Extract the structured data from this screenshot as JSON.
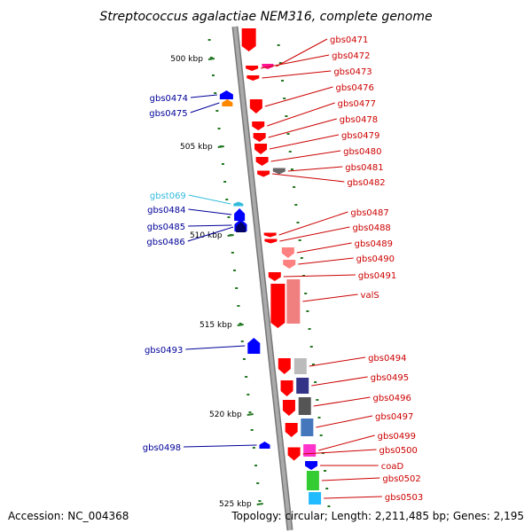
{
  "title": "Streptococcus agalactiae NEM316, complete genome",
  "footer": {
    "accession": "Accession: NC_004368",
    "summary": "Topology: circular; Length: 2,211,485 bp; Genes: 2,195"
  },
  "colors": {
    "forward_label": "#cc0000",
    "reverse_label": "#000099",
    "rna_label": "#33bbdd",
    "backbone": "#888888",
    "tick_mark": "#227722"
  },
  "scale_ticks": [
    {
      "kbp": 500,
      "label": "500 kbp"
    },
    {
      "kbp": 505,
      "label": "505 kbp"
    },
    {
      "kbp": 510,
      "label": "510 kbp"
    },
    {
      "kbp": 515,
      "label": "515 kbp"
    },
    {
      "kbp": 520,
      "label": "520 kbp"
    },
    {
      "kbp": 525,
      "label": "525 kbp"
    }
  ],
  "forward_genes": [
    {
      "name": "gbs0471",
      "color": "#ff1493"
    },
    {
      "name": "gbs0472",
      "color": "#ff0000"
    },
    {
      "name": "gbs0473",
      "color": "#ff0000"
    },
    {
      "name": "gbs0476",
      "color": "#ff0000"
    },
    {
      "name": "gbs0477",
      "color": "#ff0000"
    },
    {
      "name": "gbs0478",
      "color": "#ff0000"
    },
    {
      "name": "gbs0479",
      "color": "#ff0000"
    },
    {
      "name": "gbs0480",
      "color": "#ff0000"
    },
    {
      "name": "gbs0481",
      "color": "#666666"
    },
    {
      "name": "gbs0482",
      "color": "#ff0000"
    },
    {
      "name": "gbs0487",
      "color": "#ff0000"
    },
    {
      "name": "gbs0488",
      "color": "#ff0000"
    },
    {
      "name": "gbs0489",
      "color": "#ff8080"
    },
    {
      "name": "gbs0490",
      "color": "#ff8080"
    },
    {
      "name": "gbs0491",
      "color": "#ff0000"
    },
    {
      "name": "valS",
      "color": "#f08080"
    },
    {
      "name": "gbs0494",
      "color": "#bbbbbb"
    },
    {
      "name": "gbs0495",
      "color": "#333388"
    },
    {
      "name": "gbs0496",
      "color": "#555555"
    },
    {
      "name": "gbs0497",
      "color": "#4477bb"
    },
    {
      "name": "gbs0499",
      "color": "#ff33cc"
    },
    {
      "name": "gbs0500",
      "color": "#ff0000"
    },
    {
      "name": "coaD",
      "color": "#0000ff"
    },
    {
      "name": "gbs0502",
      "color": "#33cc33"
    },
    {
      "name": "gbs0503",
      "color": "#22bbff"
    }
  ],
  "reverse_genes": [
    {
      "name": "gbs0474",
      "color": "#0000ff"
    },
    {
      "name": "gbs0475",
      "color": "#ff8800"
    },
    {
      "name": "gbst069",
      "color": "#33bbdd"
    },
    {
      "name": "gbs0484",
      "color": "#0000ff"
    },
    {
      "name": "gbs0485",
      "color": "#0000ff"
    },
    {
      "name": "gbs0486",
      "color": "#000066"
    },
    {
      "name": "gbs0493",
      "color": "#0000ff"
    },
    {
      "name": "gbs0498",
      "color": "#0000ff"
    }
  ]
}
